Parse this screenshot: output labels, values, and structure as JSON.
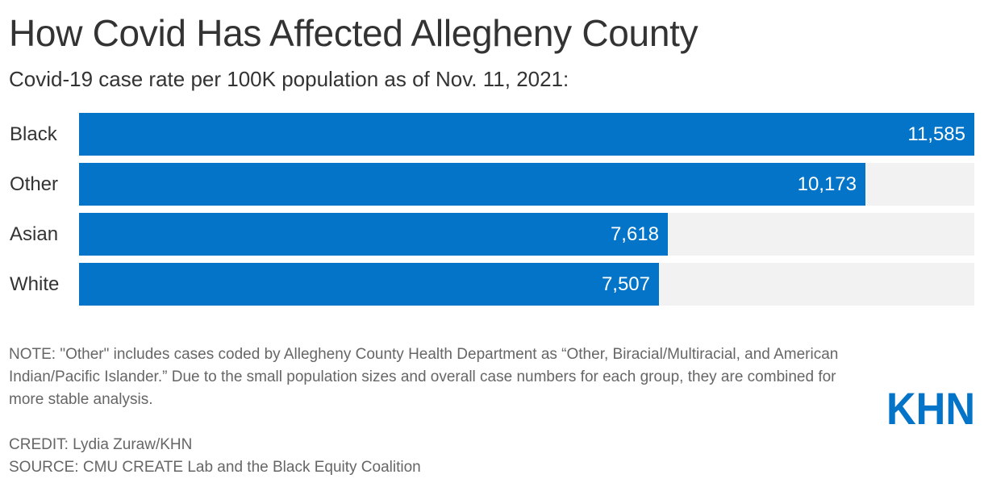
{
  "header": {
    "title": "How Covid Has Affected Allegheny County",
    "subtitle": "Covid-19 case rate per 100K population as of Nov. 11, 2021:"
  },
  "chart_data": {
    "type": "bar",
    "orientation": "horizontal",
    "title": "How Covid Has Affected Allegheny County",
    "subtitle": "Covid-19 case rate per 100K population as of Nov. 11, 2021:",
    "categories": [
      "Black",
      "Other",
      "Asian",
      "White"
    ],
    "values": [
      11585,
      10173,
      7618,
      7507
    ],
    "value_labels": [
      "11,585",
      "10,173",
      "7,618",
      "7,507"
    ],
    "xlabel": "",
    "ylabel": "",
    "xlim": [
      0,
      11585
    ],
    "bar_color": "#0374c7",
    "track_color": "#f2f2f2",
    "grid": false
  },
  "footer": {
    "note": "NOTE: \"Other\" includes cases coded by Allegheny County Health Department as “Other, Biracial/Multiracial, and American Indian/Pacific Islander.” Due to the small population sizes and overall case numbers for each group, they are combined for more stable analysis.",
    "credit": "CREDIT: Lydia Zuraw/KHN",
    "source": "SOURCE: CMU CREATE Lab and the Black Equity Coalition"
  },
  "logo": {
    "text": "KHN",
    "color": "#0374c7"
  }
}
